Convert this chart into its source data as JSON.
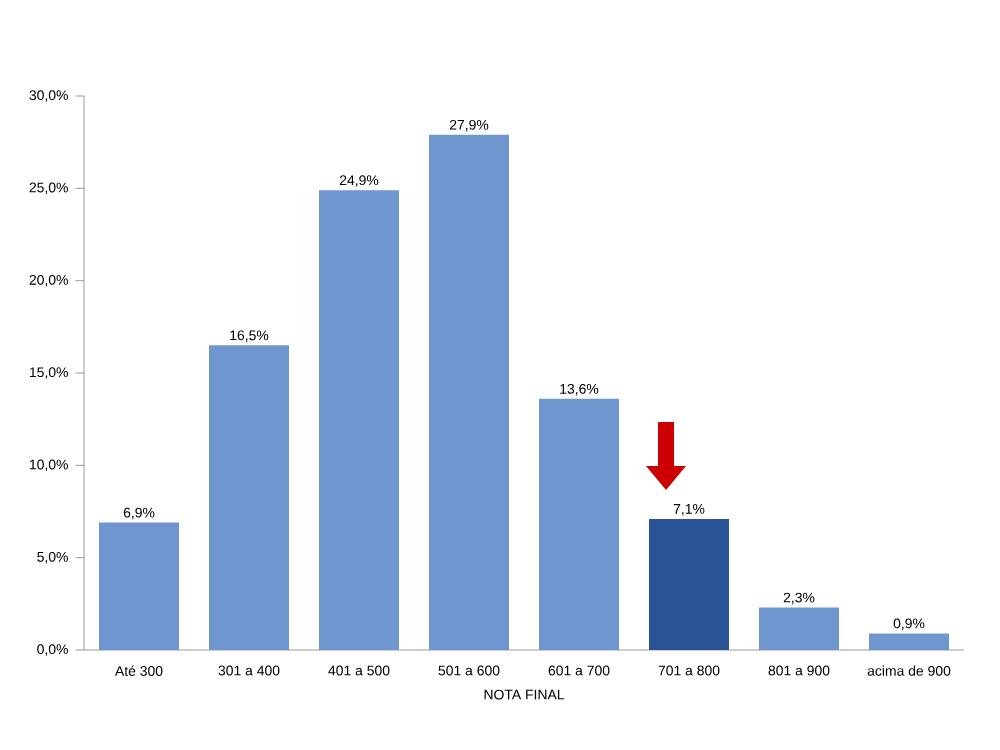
{
  "chart_data": {
    "type": "bar",
    "xlabel": "NOTA FINAL",
    "categories": [
      "Até 300",
      "301 a 400",
      "401 a 500",
      "501 a 600",
      "601 a 700",
      "701 a 800",
      "801 a 900",
      "acima de 900"
    ],
    "values": [
      6.9,
      16.5,
      24.9,
      27.9,
      13.6,
      7.1,
      2.3,
      0.9
    ],
    "value_labels": [
      "6,9%",
      "16,5%",
      "24,9%",
      "27,9%",
      "13,6%",
      "7,1%",
      "2,3%",
      "0,9%"
    ],
    "colors": [
      "#7096d0",
      "#7096d0",
      "#7096d0",
      "#7096d0",
      "#7096d0",
      "#2a5396",
      "#7096d0",
      "#7096d0"
    ],
    "ylim": [
      0,
      30
    ],
    "yticks": [
      {
        "value": 0,
        "label": "0,0%"
      },
      {
        "value": 5,
        "label": "5,0%"
      },
      {
        "value": 10,
        "label": "10,0%"
      },
      {
        "value": 15,
        "label": "15,0%"
      },
      {
        "value": 20,
        "label": "20,0%"
      },
      {
        "value": 25,
        "label": "25,0%"
      },
      {
        "value": 30,
        "label": "30,0%"
      }
    ],
    "grid": false
  }
}
